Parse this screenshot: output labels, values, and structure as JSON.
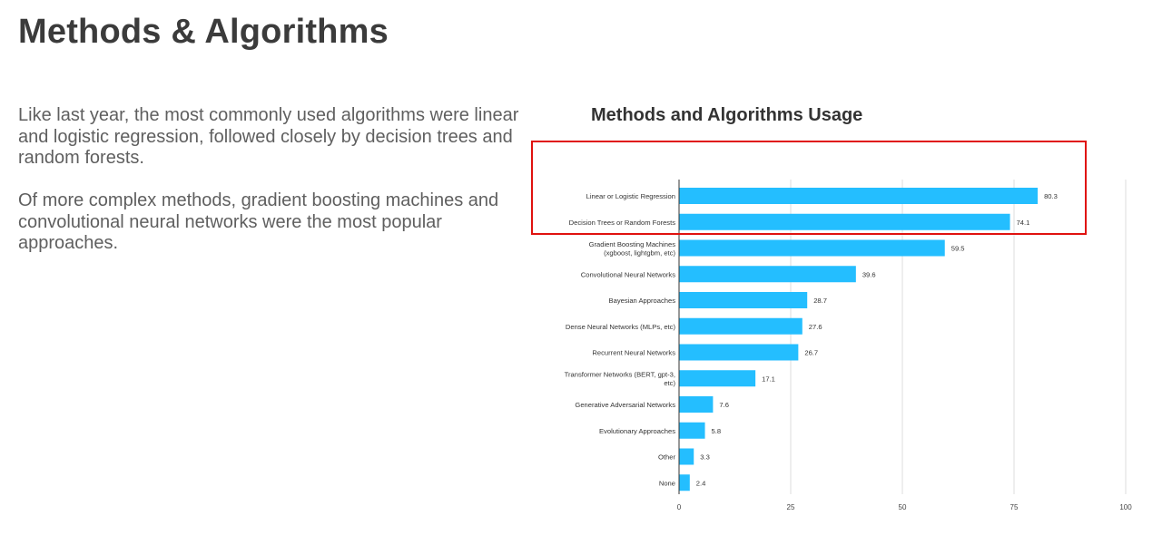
{
  "page": {
    "title": "Methods & Algorithms",
    "paragraphs": [
      "Like last year, the most commonly used algorithms were linear and logistic regression, followed closely by decision trees and random forests.",
      "Of more complex methods, gradient boosting machines and convolutional neural networks were the most popular approaches."
    ]
  },
  "colors": {
    "bar": "#24beff",
    "highlight": "#e0120f",
    "grid": "#dedede",
    "axis": "#333333"
  },
  "chart_data": {
    "type": "bar",
    "orientation": "horizontal",
    "title": "Methods and Algorithms Usage",
    "xlabel": "",
    "ylabel": "",
    "xlim": [
      0,
      100
    ],
    "xticks": [
      0,
      25,
      50,
      75,
      100
    ],
    "grid": true,
    "categories": [
      [
        "Linear or Logistic Regression"
      ],
      [
        "Decision Trees or Random Forests"
      ],
      [
        "Gradient Boosting Machines",
        "(xgboost, lightgbm, etc)"
      ],
      [
        "Convolutional Neural Networks"
      ],
      [
        "Bayesian Approaches"
      ],
      [
        "Dense Neural Networks (MLPs, etc)"
      ],
      [
        "Recurrent Neural Networks"
      ],
      [
        "Transformer Networks (BERT, gpt-3,",
        "etc)"
      ],
      [
        "Generative Adversarial Networks"
      ],
      [
        "Evolutionary Approaches"
      ],
      [
        "Other"
      ],
      [
        "None"
      ]
    ],
    "values": [
      80.3,
      74.1,
      59.5,
      39.6,
      28.7,
      27.6,
      26.7,
      17.1,
      7.6,
      5.8,
      3.3,
      2.4
    ],
    "value_labels": [
      "80.3",
      "74.1",
      "59.5",
      "39.6",
      "28.7",
      "27.6",
      "26.7",
      "17.1",
      "7.6",
      "5.8",
      "3.3",
      "2.4"
    ],
    "highlighted_categories": [
      "Linear or Logistic Regression",
      "Decision Trees or Random Forests"
    ]
  }
}
